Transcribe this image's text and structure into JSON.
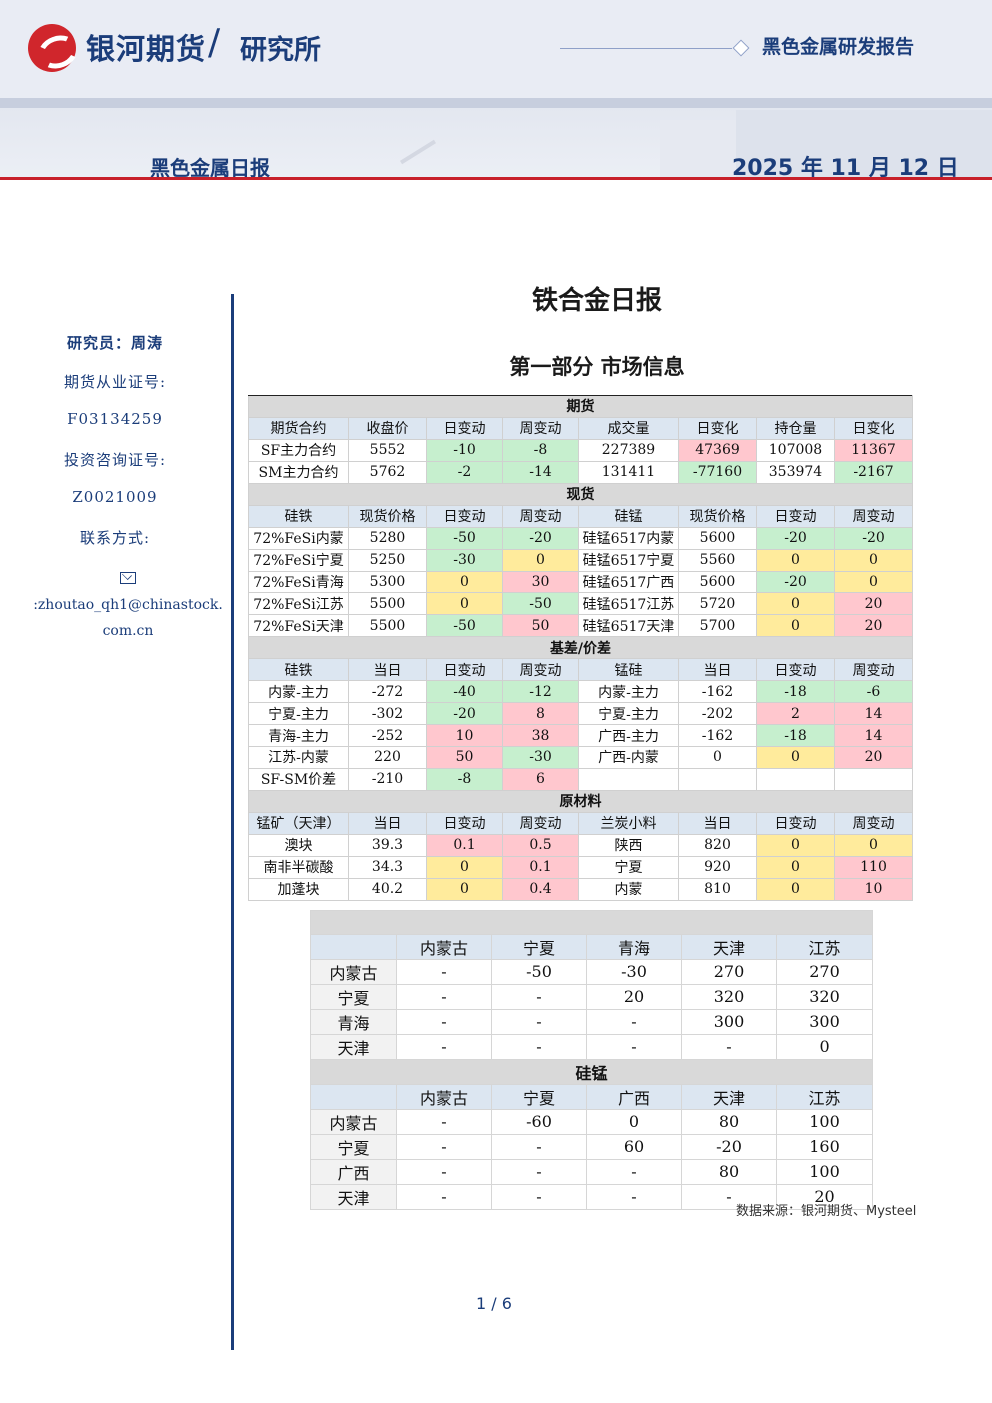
{
  "header": {
    "company": "银河期货",
    "separator": "/",
    "institute": "研究所",
    "report_series": "黑色金属研发报告",
    "report_type": "黑色金属日报",
    "date": "2025 年 11 月 12 日"
  },
  "sidebar": {
    "researcher": "研究员：周涛",
    "futures_cert_label": "期货从业证号:",
    "futures_cert": "F03134259",
    "consult_cert_label": "投资咨询证号:",
    "consult_cert": "Z0021009",
    "contact_label": "联系方式:",
    "email_line1": ":zhoutao_qh1@chinastock.",
    "email_line2": "com.cn"
  },
  "main": {
    "title": "铁合金日报",
    "section": "第一部分 市场信息"
  },
  "table1": {
    "futures": {
      "title": "期货",
      "headers": [
        "期货合约",
        "收盘价",
        "日变动",
        "周变动",
        "成交量",
        "日变化",
        "持仓量",
        "日变化"
      ],
      "rows": [
        [
          "SF主力合约",
          "5552",
          "-10",
          "-8",
          "227389",
          "47369",
          "107008",
          "11367"
        ],
        [
          "SM主力合约",
          "5762",
          "-2",
          "-14",
          "131411",
          "-77160",
          "353974",
          "-2167"
        ]
      ]
    },
    "spot": {
      "title": "现货",
      "headers": [
        "硅铁",
        "现货价格",
        "日变动",
        "周变动",
        "硅锰",
        "现货价格",
        "日变动",
        "周变动"
      ],
      "rows": [
        [
          "72%FeSi内蒙",
          "5280",
          "-50",
          "-20",
          "硅锰6517内蒙",
          "5600",
          "-20",
          "-20"
        ],
        [
          "72%FeSi宁夏",
          "5250",
          "-30",
          "0",
          "硅锰6517宁夏",
          "5560",
          "0",
          "0"
        ],
        [
          "72%FeSi青海",
          "5300",
          "0",
          "30",
          "硅锰6517广西",
          "5600",
          "-20",
          "0"
        ],
        [
          "72%FeSi江苏",
          "5500",
          "0",
          "-50",
          "硅锰6517江苏",
          "5720",
          "0",
          "20"
        ],
        [
          "72%FeSi天津",
          "5500",
          "-50",
          "50",
          "硅锰6517天津",
          "5700",
          "0",
          "20"
        ]
      ]
    },
    "basis": {
      "title": "基差/价差",
      "headers": [
        "硅铁",
        "当日",
        "日变动",
        "周变动",
        "锰硅",
        "当日",
        "日变动",
        "周变动"
      ],
      "rows": [
        [
          "内蒙-主力",
          "-272",
          "-40",
          "-12",
          "内蒙-主力",
          "-162",
          "-18",
          "-6"
        ],
        [
          "宁夏-主力",
          "-302",
          "-20",
          "8",
          "宁夏-主力",
          "-202",
          "2",
          "14"
        ],
        [
          "青海-主力",
          "-252",
          "10",
          "38",
          "广西-主力",
          "-162",
          "-18",
          "14"
        ],
        [
          "江苏-内蒙",
          "220",
          "50",
          "-30",
          "广西-内蒙",
          "0",
          "0",
          "20"
        ],
        [
          "SF-SM价差",
          "-210",
          "-8",
          "6",
          "",
          "",
          "",
          ""
        ]
      ]
    },
    "raw": {
      "title": "原材料",
      "headers": [
        "锰矿（天津）",
        "当日",
        "日变动",
        "周变动",
        "兰炭小料",
        "当日",
        "日变动",
        "周变动"
      ],
      "rows": [
        [
          "澳块",
          "39.3",
          "0.1",
          "0.5",
          "陕西",
          "820",
          "0",
          "0"
        ],
        [
          "南非半碳酸",
          "34.3",
          "0",
          "0.1",
          "宁夏",
          "920",
          "0",
          "110"
        ],
        [
          "加蓬块",
          "40.2",
          "0",
          "0.4",
          "内蒙",
          "810",
          "0",
          "10"
        ]
      ]
    }
  },
  "table2": {
    "ferrosilicon": {
      "title": "",
      "headers": [
        "",
        "内蒙古",
        "宁夏",
        "青海",
        "天津",
        "江苏"
      ],
      "rows": [
        [
          "内蒙古",
          "-",
          "-50",
          "-30",
          "270",
          "270"
        ],
        [
          "宁夏",
          "-",
          "-",
          "20",
          "320",
          "320"
        ],
        [
          "青海",
          "-",
          "-",
          "-",
          "300",
          "300"
        ],
        [
          "天津",
          "-",
          "-",
          "-",
          "-",
          "0"
        ]
      ]
    },
    "silicomanganese": {
      "title": "硅锰",
      "headers": [
        "",
        "内蒙古",
        "宁夏",
        "广西",
        "天津",
        "江苏"
      ],
      "rows": [
        [
          "内蒙古",
          "-",
          "-60",
          "0",
          "80",
          "100"
        ],
        [
          "宁夏",
          "-",
          "-",
          "60",
          "-20",
          "160"
        ],
        [
          "广西",
          "-",
          "-",
          "-",
          "80",
          "100"
        ],
        [
          "天津",
          "-",
          "-",
          "-",
          "-",
          "20"
        ]
      ]
    }
  },
  "source_note": "数据来源：银河期货、Mysteel",
  "page_number": "1 / 6",
  "colors": {
    "positive": "#ffc7ce",
    "negative": "#c6efce",
    "zero": "#ffeb9c",
    "brand_red": "#c8202a",
    "brand_blue": "#1b3d7a"
  }
}
